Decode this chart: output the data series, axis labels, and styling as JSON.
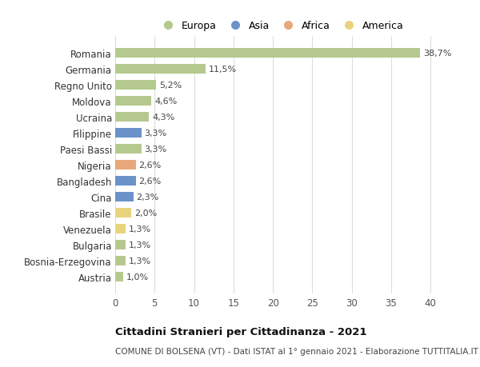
{
  "countries": [
    "Romania",
    "Germania",
    "Regno Unito",
    "Moldova",
    "Ucraina",
    "Filippine",
    "Paesi Bassi",
    "Nigeria",
    "Bangladesh",
    "Cina",
    "Brasile",
    "Venezuela",
    "Bulgaria",
    "Bosnia-Erzegovina",
    "Austria"
  ],
  "values": [
    38.7,
    11.5,
    5.2,
    4.6,
    4.3,
    3.3,
    3.3,
    2.6,
    2.6,
    2.3,
    2.0,
    1.3,
    1.3,
    1.3,
    1.0
  ],
  "labels": [
    "38,7%",
    "11,5%",
    "5,2%",
    "4,6%",
    "4,3%",
    "3,3%",
    "3,3%",
    "2,6%",
    "2,6%",
    "2,3%",
    "2,0%",
    "1,3%",
    "1,3%",
    "1,3%",
    "1,0%"
  ],
  "categories": [
    "Europa",
    "Europa",
    "Europa",
    "Europa",
    "Europa",
    "Asia",
    "Europa",
    "Africa",
    "Asia",
    "Asia",
    "America",
    "America",
    "Europa",
    "Europa",
    "Europa"
  ],
  "colors": {
    "Europa": "#b5c98e",
    "Asia": "#6b93c9",
    "Africa": "#e8a87c",
    "America": "#e8d47c"
  },
  "legend_order": [
    "Europa",
    "Asia",
    "Africa",
    "America"
  ],
  "title": "Cittadini Stranieri per Cittadinanza - 2021",
  "subtitle": "COMUNE DI BOLSENA (VT) - Dati ISTAT al 1° gennaio 2021 - Elaborazione TUTTITALIA.IT",
  "xlim": [
    0,
    42
  ],
  "xticks": [
    0,
    5,
    10,
    15,
    20,
    25,
    30,
    35,
    40
  ],
  "bg_color": "#ffffff",
  "grid_color": "#dddddd"
}
